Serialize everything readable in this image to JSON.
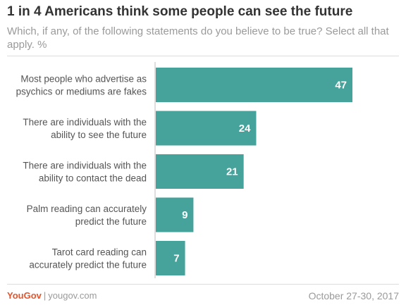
{
  "header": {
    "title": "1 in 4 Americans think some people can see the future",
    "subtitle": "Which, if any, of the following statements do you believe to be true? Select all that apply. %"
  },
  "footer": {
    "brand": "YouGov",
    "url": "yougov.com",
    "date": "October 27-30, 2017",
    "brand_color": "#e8532b"
  },
  "colors": {
    "bar": "#45a39b",
    "axis": "#bdbdbd",
    "category_text": "#555555",
    "value_text": "#ffffff"
  },
  "chart_data": {
    "type": "bar",
    "orientation": "horizontal",
    "title": "1 in 4 Americans think some people can see the future",
    "xlabel": "",
    "ylabel": "",
    "xlim": [
      0,
      50
    ],
    "grid": false,
    "categories": [
      [
        "Most people who advertise as",
        "psychics or mediums are fakes"
      ],
      [
        "There are individuals with the",
        "ability to see the future"
      ],
      [
        "There are individuals with the",
        "ability to contact the dead"
      ],
      [
        "Palm reading can accurately",
        "predict the future"
      ],
      [
        "Tarot card reading can",
        "accurately predict the future"
      ]
    ],
    "values": [
      47,
      24,
      21,
      9,
      7
    ]
  }
}
